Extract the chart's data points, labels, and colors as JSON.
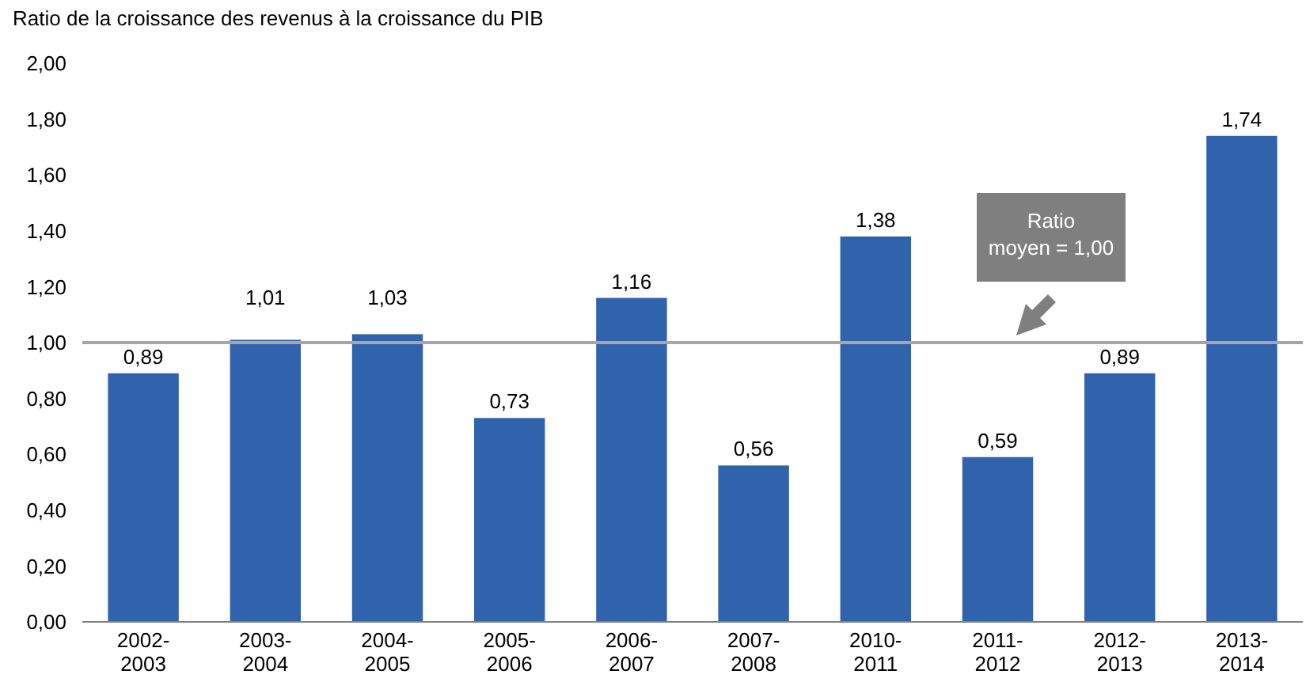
{
  "chart_data": {
    "type": "bar",
    "ylabel": "Ratio de la croissance des revenus à la croissance du PIB",
    "categories": [
      "2002-2003",
      "2003-2004",
      "2004-2005",
      "2005-2006",
      "2006-2007",
      "2007-2008",
      "2010-2011",
      "2011-2012",
      "2012-2013",
      "2013-2014"
    ],
    "values": [
      0.89,
      1.01,
      1.03,
      0.73,
      1.16,
      0.56,
      1.38,
      0.59,
      0.89,
      1.74
    ],
    "value_labels": [
      "0,89",
      "1,01",
      "1,03",
      "0,73",
      "1,16",
      "0,56",
      "1,38",
      "0,59",
      "0,89",
      "1,74"
    ],
    "color": "#3162ac",
    "ylim": [
      0,
      2
    ],
    "yticks": [
      {
        "value": 0,
        "label": "0,00"
      },
      {
        "value": 0.2,
        "label": "0,20"
      },
      {
        "value": 0.4,
        "label": "0,40"
      },
      {
        "value": 0.6,
        "label": "0,60"
      },
      {
        "value": 0.8,
        "label": "0,80"
      },
      {
        "value": 1,
        "label": "1,00"
      },
      {
        "value": 1.2,
        "label": "1,20"
      },
      {
        "value": 1.4,
        "label": "1,40"
      },
      {
        "value": 1.6,
        "label": "1,60"
      },
      {
        "value": 1.8,
        "label": "1,80"
      },
      {
        "value": 2,
        "label": "2,00"
      }
    ],
    "annotations": [
      "Ratio moyen = 1,00"
    ],
    "ref_lines": [
      {
        "axis": "y",
        "value": 1,
        "color": "#a6a6a6"
      }
    ]
  }
}
